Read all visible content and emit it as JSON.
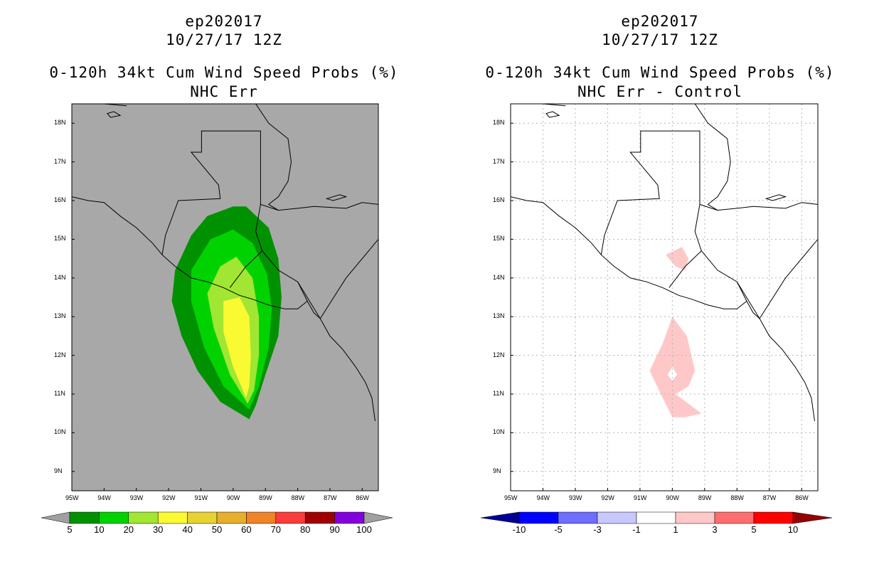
{
  "chart_data": [
    {
      "type": "heatmap",
      "title_lines": [
        "ep202017",
        "10/27/17 12Z",
        "0-120h 34kt Cum Wind Speed Probs (%)",
        "NHC Err"
      ],
      "x_ticks": [
        "95W",
        "94W",
        "93W",
        "92W",
        "91W",
        "90W",
        "89W",
        "88W",
        "87W",
        "86W"
      ],
      "y_ticks": [
        "18N",
        "17N",
        "16N",
        "15N",
        "14N",
        "13N",
        "12N",
        "11N",
        "10N",
        "9N"
      ],
      "xlim": [
        -95,
        -85.5
      ],
      "ylim": [
        8.5,
        18.5
      ],
      "legend": {
        "labels": [
          "5",
          "10",
          "20",
          "30",
          "40",
          "50",
          "60",
          "70",
          "80",
          "90",
          "100"
        ],
        "colors": [
          "#a0a0a0",
          "#009100",
          "#00d200",
          "#a0e632",
          "#fafa32",
          "#e6d232",
          "#e6af2d",
          "#f08228",
          "#fa3c3c",
          "#a00000",
          "#8200dc",
          "#a0a0a0"
        ]
      },
      "contours": [
        {
          "level": "5-10",
          "color": "#009100",
          "points": [
            [
              -89.5,
              10.35
            ],
            [
              -90.4,
              10.8
            ],
            [
              -91.1,
              11.6
            ],
            [
              -91.6,
              12.5
            ],
            [
              -91.9,
              13.4
            ],
            [
              -91.8,
              14.2
            ],
            [
              -91.3,
              15.1
            ],
            [
              -90.8,
              15.6
            ],
            [
              -90.0,
              15.85
            ],
            [
              -89.6,
              15.85
            ],
            [
              -88.9,
              15.3
            ],
            [
              -88.6,
              14.5
            ],
            [
              -88.5,
              13.5
            ],
            [
              -88.6,
              12.5
            ],
            [
              -89.0,
              11.5
            ],
            [
              -89.3,
              10.7
            ]
          ]
        },
        {
          "level": "10-20",
          "color": "#00d200",
          "points": [
            [
              -89.5,
              10.6
            ],
            [
              -90.3,
              11.2
            ],
            [
              -90.9,
              12.2
            ],
            [
              -91.3,
              13.4
            ],
            [
              -91.3,
              14.2
            ],
            [
              -90.7,
              15.0
            ],
            [
              -90.0,
              15.25
            ],
            [
              -89.4,
              14.9
            ],
            [
              -88.95,
              14.1
            ],
            [
              -88.8,
              13.2
            ],
            [
              -88.9,
              12.2
            ],
            [
              -89.2,
              11.2
            ]
          ]
        },
        {
          "level": "20-30",
          "color": "#a0e632",
          "points": [
            [
              -89.55,
              10.75
            ],
            [
              -90.1,
              11.5
            ],
            [
              -90.6,
              12.7
            ],
            [
              -90.8,
              13.6
            ],
            [
              -90.4,
              14.3
            ],
            [
              -89.9,
              14.55
            ],
            [
              -89.4,
              14.0
            ],
            [
              -89.2,
              13.0
            ],
            [
              -89.2,
              12.0
            ],
            [
              -89.35,
              11.1
            ]
          ]
        },
        {
          "level": "30-40",
          "color": "#fafa32",
          "points": [
            [
              -89.6,
              10.9
            ],
            [
              -90.0,
              11.7
            ],
            [
              -90.3,
              12.6
            ],
            [
              -90.3,
              13.4
            ],
            [
              -89.8,
              13.5
            ],
            [
              -89.5,
              13.0
            ],
            [
              -89.45,
              12.0
            ],
            [
              -89.5,
              11.2
            ]
          ]
        }
      ]
    },
    {
      "type": "heatmap",
      "title_lines": [
        "ep202017",
        "10/27/17 12Z",
        "0-120h 34kt Cum Wind Speed Probs (%)",
        "NHC Err - Control"
      ],
      "x_ticks": [
        "95W",
        "94W",
        "93W",
        "92W",
        "91W",
        "90W",
        "89W",
        "88W",
        "87W",
        "86W"
      ],
      "y_ticks": [
        "18N",
        "17N",
        "16N",
        "15N",
        "14N",
        "13N",
        "12N",
        "11N",
        "10N",
        "9N"
      ],
      "xlim": [
        -95,
        -85.5
      ],
      "ylim": [
        8.5,
        18.5
      ],
      "legend": {
        "labels": [
          "-10",
          "-5",
          "-3",
          "-1",
          "1",
          "3",
          "5",
          "10"
        ],
        "colors": [
          "#000096",
          "#0000ff",
          "#6e6eff",
          "#c8c8ff",
          "#ffffff",
          "#ffc8c8",
          "#ff6e6e",
          "#ff0000",
          "#960000"
        ]
      },
      "contours": [
        {
          "level": "1-3",
          "color": "#ffc8c8",
          "points": [
            [
              -90.2,
              14.6
            ],
            [
              -89.9,
              14.3
            ],
            [
              -89.6,
              14.2
            ],
            [
              -89.5,
              14.5
            ],
            [
              -89.7,
              14.8
            ]
          ]
        },
        {
          "level": "1-3",
          "color": "#ffc8c8",
          "points": [
            [
              -90.0,
              13.0
            ],
            [
              -89.55,
              12.5
            ],
            [
              -89.3,
              11.6
            ],
            [
              -89.5,
              11.2
            ],
            [
              -89.9,
              11.0
            ],
            [
              -89.1,
              10.5
            ],
            [
              -89.6,
              10.4
            ],
            [
              -90.0,
              10.4
            ],
            [
              -90.3,
              10.9
            ],
            [
              -90.7,
              11.6
            ],
            [
              -90.3,
              12.3
            ]
          ]
        }
      ],
      "holes": [
        {
          "points": [
            [
              -90.0,
              11.7
            ],
            [
              -89.85,
              11.5
            ],
            [
              -90.0,
              11.35
            ],
            [
              -90.15,
              11.5
            ]
          ]
        }
      ]
    }
  ]
}
